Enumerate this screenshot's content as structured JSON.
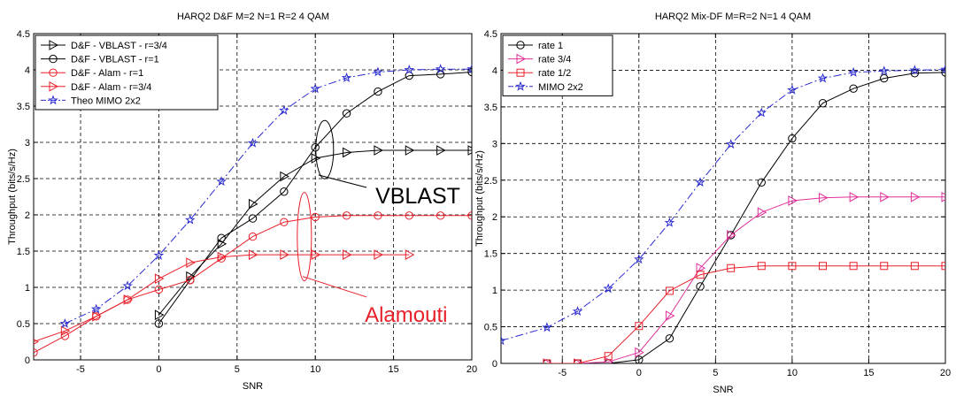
{
  "chart_data": [
    {
      "type": "line",
      "title": "HARQ2  D&F   M=2   N=1   R=2        4 QAM",
      "xlabel": "SNR",
      "ylabel": "Throughput (bits/s/Hz)",
      "xlim": [
        -8,
        20
      ],
      "ylim": [
        0,
        4.5
      ],
      "xticks": [
        -5,
        0,
        5,
        10,
        15,
        20
      ],
      "xtick_labels": [
        "-5",
        "0",
        "5",
        "10",
        "15",
        "20"
      ],
      "yticks": [
        0,
        0.5,
        1,
        1.5,
        2,
        2.5,
        3,
        3.5,
        4,
        4.5
      ],
      "ytick_labels": [
        "0",
        "0.5",
        "1",
        "1.5",
        "2",
        "2.5",
        "3",
        "3.5",
        "4",
        "4.5"
      ],
      "grid": true,
      "legend_position": "top-left",
      "series": [
        {
          "name": "D&F - VBLAST - r=3/4",
          "color": "#000000",
          "marker": "triangle-right",
          "dash": "solid",
          "x": [
            0,
            2,
            4,
            6,
            8,
            10,
            12,
            14,
            16,
            18,
            20
          ],
          "y": [
            0.62,
            1.15,
            1.6,
            2.15,
            2.53,
            2.78,
            2.86,
            2.89,
            2.89,
            2.89,
            2.89
          ]
        },
        {
          "name": "D&F - VBLAST - r=1",
          "color": "#000000",
          "marker": "circle",
          "dash": "solid",
          "x": [
            0,
            2,
            4,
            6,
            8,
            10,
            12,
            14,
            16,
            18,
            20
          ],
          "y": [
            0.5,
            1.1,
            1.68,
            1.95,
            2.32,
            2.93,
            3.4,
            3.7,
            3.92,
            3.94,
            3.97
          ]
        },
        {
          "name": "D&F - Alam - r=1",
          "color": "#e8202a",
          "marker": "circle",
          "dash": "solid",
          "x": [
            -8,
            -6,
            -4,
            -2,
            0,
            2,
            4,
            6,
            8,
            10,
            12,
            14,
            16,
            18,
            20
          ],
          "y": [
            0.1,
            0.33,
            0.6,
            0.83,
            0.97,
            1.1,
            1.4,
            1.7,
            1.9,
            1.97,
            1.99,
            1.99,
            1.99,
            1.99,
            1.99
          ]
        },
        {
          "name": "D&F - Alam - r=3/4",
          "color": "#e8202a",
          "marker": "triangle-right",
          "dash": "solid",
          "x": [
            -8,
            -6,
            -4,
            -2,
            0,
            2,
            4,
            6,
            8,
            10,
            12,
            14,
            16
          ],
          "y": [
            0.25,
            0.4,
            0.6,
            0.83,
            1.12,
            1.34,
            1.42,
            1.45,
            1.45,
            1.45,
            1.45,
            1.45,
            1.45
          ]
        },
        {
          "name": "Theo MIMO 2x2",
          "color": "#2b2bd0",
          "marker": "star",
          "dash": "dashdot",
          "x": [
            -6,
            -4,
            -2,
            0,
            2,
            4,
            6,
            8,
            10,
            12,
            14,
            16,
            18,
            20
          ],
          "y": [
            0.5,
            0.7,
            1.02,
            1.44,
            1.93,
            2.46,
            2.99,
            3.44,
            3.74,
            3.89,
            3.97,
            4.0,
            4.01,
            4.01
          ]
        }
      ],
      "annotations": [
        {
          "text": "VBLAST",
          "color": "#000000",
          "x": 13.5,
          "y": 2.28
        },
        {
          "text": "Alamouti",
          "color": "#e8202a",
          "x": 13.5,
          "y": 0.72
        }
      ]
    },
    {
      "type": "line",
      "title": "HARQ2    Mix-DF   M=R=2  N=1   4 QAM",
      "xlabel": "SNR",
      "ylabel": "Throughput (bits/s/Hz)",
      "xlim": [
        -9,
        20
      ],
      "ylim": [
        0,
        4.5
      ],
      "xticks": [
        -5,
        0,
        5,
        10,
        15,
        20
      ],
      "xtick_labels": [
        "-5",
        "0",
        "5",
        "10",
        "15",
        "20"
      ],
      "yticks": [
        0,
        0.5,
        1,
        1.5,
        2,
        2.5,
        3,
        3.5,
        4,
        4.5
      ],
      "ytick_labels": [
        "0",
        "0.5",
        "1",
        "1.5",
        "2",
        "2.5",
        "3",
        "3.5",
        "4",
        "4.5"
      ],
      "grid": true,
      "legend_position": "top-left",
      "series": [
        {
          "name": "rate 1",
          "color": "#000000",
          "marker": "circle",
          "dash": "solid",
          "x": [
            -6,
            -4,
            -2,
            0,
            2,
            4,
            6,
            8,
            10,
            12,
            14,
            16,
            18,
            20
          ],
          "y": [
            0,
            0,
            0,
            0.05,
            0.34,
            1.05,
            1.75,
            2.47,
            3.07,
            3.55,
            3.75,
            3.89,
            3.96,
            3.97
          ]
        },
        {
          "name": "rate 3/4",
          "color": "#e0309a",
          "marker": "triangle-right",
          "dash": "solid",
          "x": [
            -6,
            -4,
            -2,
            0,
            2,
            4,
            6,
            8,
            10,
            12,
            14,
            16,
            18,
            20
          ],
          "y": [
            0,
            0,
            0.02,
            0.15,
            0.65,
            1.3,
            1.75,
            2.06,
            2.22,
            2.26,
            2.27,
            2.27,
            2.27,
            2.27
          ]
        },
        {
          "name": "rate 1/2",
          "color": "#e8202a",
          "marker": "square",
          "dash": "solid",
          "x": [
            -6,
            -4,
            -2,
            0,
            2,
            4,
            6,
            8,
            10,
            12,
            14,
            16,
            18,
            20
          ],
          "y": [
            0,
            0,
            0.1,
            0.51,
            0.99,
            1.21,
            1.3,
            1.33,
            1.33,
            1.33,
            1.33,
            1.33,
            1.33,
            1.33
          ]
        },
        {
          "name": "MIMO 2x2",
          "color": "#2b2bd0",
          "marker": "star",
          "dash": "dashdot",
          "x": [
            -9,
            -6,
            -4,
            -2,
            0,
            2,
            4,
            6,
            8,
            10,
            12,
            14,
            16,
            18,
            20
          ],
          "y": [
            0.31,
            0.49,
            0.71,
            1.02,
            1.42,
            1.92,
            2.47,
            2.99,
            3.42,
            3.73,
            3.89,
            3.97,
            3.99,
            4.0,
            4.01
          ]
        }
      ]
    }
  ]
}
